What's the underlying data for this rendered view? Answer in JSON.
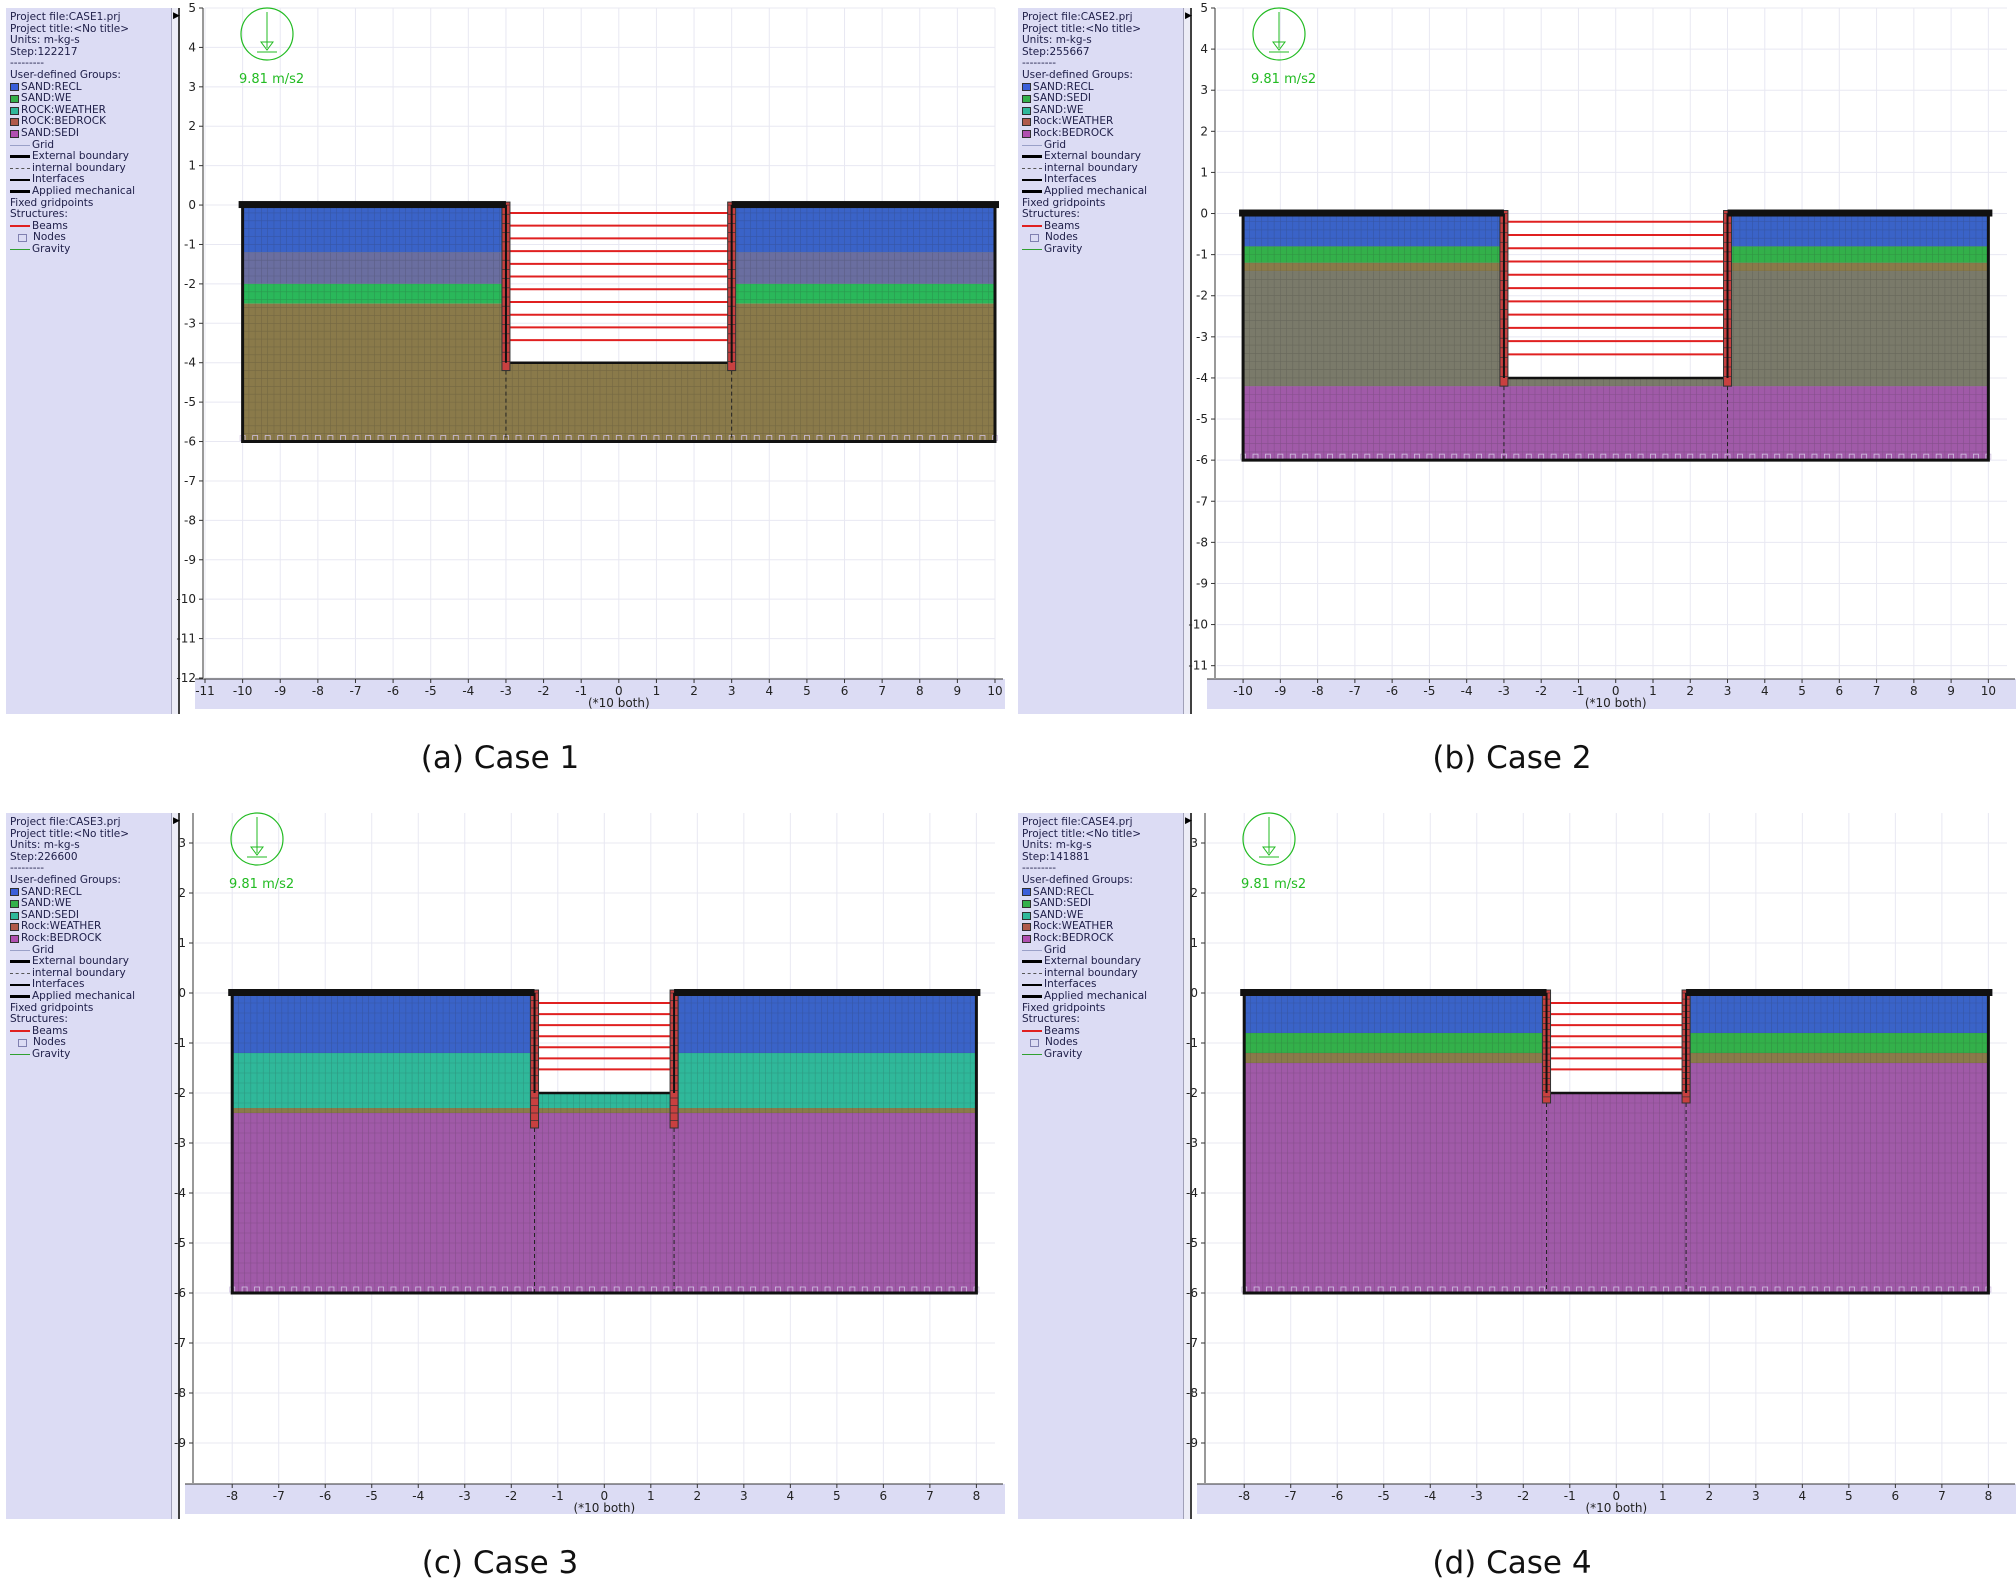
{
  "chart_data": [
    {
      "type": "diagram",
      "project_file": "Project file:CASE1.prj",
      "project_title": "Project title:<No title>",
      "units": "Units: m-kg-s",
      "step": "Step:122217",
      "dashes": "---------",
      "groups_heading": "User-defined Groups:",
      "groups": [
        {
          "name": "SAND:RECL",
          "color": "#3a5fd9"
        },
        {
          "name": "SAND:WE",
          "color": "#33b04a"
        },
        {
          "name": "ROCK:WEATHER",
          "color": "#2fb89a"
        },
        {
          "name": "ROCK:BEDROCK",
          "color": "#b05a4a"
        },
        {
          "name": "SAND:SEDI",
          "color": "#b050b0"
        }
      ],
      "legend_items": [
        "Grid",
        "External boundary",
        "internal boundary",
        "Interfaces",
        "Applied mechanical",
        "Fixed gridpoints",
        "Structures:",
        "Beams",
        "Nodes",
        "Gravity"
      ],
      "gravity_label": "9.81 m/s2",
      "axis_note": "(*10 both)",
      "x_ticks": [
        "-11",
        "-10",
        "-9",
        "-8",
        "-7",
        "-6",
        "-5",
        "-4",
        "-3",
        "-2",
        "-1",
        "0",
        "1",
        "2",
        "3",
        "4",
        "5",
        "6",
        "7",
        "8",
        "9",
        "10"
      ],
      "y_ticks": [
        "5",
        "4",
        "3",
        "2",
        "1",
        "0",
        "-1",
        "-2",
        "-3",
        "-4",
        "-5",
        "-6",
        "-7",
        "-8",
        "-9",
        "-10",
        "-11",
        "-12"
      ],
      "xlim": [
        -11,
        10
      ],
      "ylim": [
        -12,
        5
      ],
      "domain": {
        "x0": -10,
        "x1": 10,
        "y0": -6,
        "y1": 0
      },
      "excavation": {
        "left": -3,
        "right": 3,
        "depth": -4
      },
      "wall_bottom": -4.2,
      "strut_count": 11,
      "layers": [
        {
          "top": 0,
          "bottom": -1.2,
          "color": "#3a63c8"
        },
        {
          "top": -1.2,
          "bottom": -2.0,
          "color": "#6a6ea0"
        },
        {
          "top": -2.0,
          "bottom": -2.5,
          "color": "#2ab85a"
        },
        {
          "top": -2.5,
          "bottom": -6.0,
          "color": "#8a7a4a"
        }
      ],
      "caption": "(a) Case 1"
    },
    {
      "type": "diagram",
      "project_file": "Project file:CASE2.prj",
      "project_title": "Project title:<No title>",
      "units": "Units: m-kg-s",
      "step": "Step:255667",
      "dashes": "---------",
      "groups_heading": "User-defined Groups:",
      "groups": [
        {
          "name": "SAND:RECL",
          "color": "#3a5fd9"
        },
        {
          "name": "SAND:SEDI",
          "color": "#33b04a"
        },
        {
          "name": "SAND:WE",
          "color": "#2fb89a"
        },
        {
          "name": "Rock:WEATHER",
          "color": "#b05a4a"
        },
        {
          "name": "Rock:BEDROCK",
          "color": "#b050b0"
        }
      ],
      "legend_items": [
        "Grid",
        "External boundary",
        "internal boundary",
        "Interfaces",
        "Applied mechanical",
        "Fixed gridpoints",
        "Structures:",
        "Beams",
        "Nodes",
        "Gravity"
      ],
      "gravity_label": "9.81 m/s2",
      "axis_note": "(*10 both)",
      "x_ticks": [
        "-10",
        "-9",
        "-8",
        "-7",
        "-6",
        "-5",
        "-4",
        "-3",
        "-2",
        "-1",
        "0",
        "1",
        "2",
        "3",
        "4",
        "5",
        "6",
        "7",
        "8",
        "9",
        "10"
      ],
      "y_ticks": [
        "5",
        "4",
        "3",
        "2",
        "1",
        "0",
        "-1",
        "-2",
        "-3",
        "-4",
        "-5",
        "-6",
        "-7",
        "-8",
        "-9",
        "-10",
        "-11"
      ],
      "xlim": [
        -10.7,
        10.5
      ],
      "ylim": [
        -11.3,
        5
      ],
      "domain": {
        "x0": -10,
        "x1": 10,
        "y0": -6,
        "y1": 0
      },
      "excavation": {
        "left": -3,
        "right": 3,
        "depth": -4
      },
      "wall_bottom": -4.2,
      "strut_count": 11,
      "layers": [
        {
          "top": 0,
          "bottom": -0.8,
          "color": "#3a63c8"
        },
        {
          "top": -0.8,
          "bottom": -1.2,
          "color": "#33b04a"
        },
        {
          "top": -1.2,
          "bottom": -1.4,
          "color": "#8a7a4a"
        },
        {
          "top": -1.4,
          "bottom": -4.2,
          "color": "#7a7a6a"
        },
        {
          "top": -4.2,
          "bottom": -6.0,
          "color": "#a05aa8"
        }
      ],
      "caption": "(b) Case 2"
    },
    {
      "type": "diagram",
      "project_file": "Project file:CASE3.prj",
      "project_title": "Project title:<No title>",
      "units": "Units: m-kg-s",
      "step": "Step:226600",
      "dashes": "---------",
      "groups_heading": "User-defined Groups:",
      "groups": [
        {
          "name": "SAND:RECL",
          "color": "#3a5fd9"
        },
        {
          "name": "SAND:WE",
          "color": "#33b04a"
        },
        {
          "name": "SAND:SEDI",
          "color": "#2fb89a"
        },
        {
          "name": "Rock:WEATHER",
          "color": "#b05a4a"
        },
        {
          "name": "Rock:BEDROCK",
          "color": "#b050b0"
        }
      ],
      "legend_items": [
        "Grid",
        "External boundary",
        "internal boundary",
        "Interfaces",
        "Applied mechanical",
        "Fixed gridpoints",
        "Structures:",
        "Beams",
        "Nodes",
        "Gravity"
      ],
      "gravity_label": "9.81 m/s2",
      "axis_note": "(*10 both)",
      "x_ticks": [
        "-8",
        "-7",
        "-6",
        "-5",
        "-4",
        "-3",
        "-2",
        "-1",
        "0",
        "1",
        "2",
        "3",
        "4",
        "5",
        "6",
        "7",
        "8"
      ],
      "y_ticks": [
        "3",
        "2",
        "1",
        "0",
        "-1",
        "-2",
        "-3",
        "-4",
        "-5",
        "-6",
        "-7",
        "-8",
        "-9"
      ],
      "xlim": [
        -8.8,
        8.4
      ],
      "ylim": [
        -9.8,
        3.6
      ],
      "domain": {
        "x0": -8,
        "x1": 8,
        "y0": -6,
        "y1": 0
      },
      "excavation": {
        "left": -1.5,
        "right": 1.5,
        "depth": -2
      },
      "wall_bottom": -2.7,
      "strut_count": 7,
      "layers": [
        {
          "top": 0,
          "bottom": -1.2,
          "color": "#3a63c8"
        },
        {
          "top": -1.2,
          "bottom": -2.3,
          "color": "#2fb89a"
        },
        {
          "top": -2.3,
          "bottom": -2.4,
          "color": "#8a7a4a"
        },
        {
          "top": -2.4,
          "bottom": -6.0,
          "color": "#a05aa8"
        }
      ],
      "caption": "(c) Case 3"
    },
    {
      "type": "diagram",
      "project_file": "Project file:CASE4.prj",
      "project_title": "Project title:<No title>",
      "units": "Units: m-kg-s",
      "step": "Step:141881",
      "dashes": "---------",
      "groups_heading": "User-defined Groups:",
      "groups": [
        {
          "name": "SAND:RECL",
          "color": "#3a5fd9"
        },
        {
          "name": "SAND:SEDI",
          "color": "#33b04a"
        },
        {
          "name": "SAND:WE",
          "color": "#2fb89a"
        },
        {
          "name": "Rock:WEATHER",
          "color": "#b05a4a"
        },
        {
          "name": "Rock:BEDROCK",
          "color": "#b050b0"
        }
      ],
      "legend_items": [
        "Grid",
        "External boundary",
        "internal boundary",
        "Interfaces",
        "Applied mechanical",
        "Fixed gridpoints",
        "Structures:",
        "Beams",
        "Nodes",
        "Gravity"
      ],
      "gravity_label": "9.81 m/s2",
      "axis_note": "(*10 both)",
      "x_ticks": [
        "-8",
        "-7",
        "-6",
        "-5",
        "-4",
        "-3",
        "-2",
        "-1",
        "0",
        "1",
        "2",
        "3",
        "4",
        "5",
        "6",
        "7",
        "8"
      ],
      "y_ticks": [
        "3",
        "2",
        "1",
        "0",
        "-1",
        "-2",
        "-3",
        "-4",
        "-5",
        "-6",
        "-7",
        "-8",
        "-9"
      ],
      "xlim": [
        -8.8,
        8.4
      ],
      "ylim": [
        -9.8,
        3.6
      ],
      "domain": {
        "x0": -8,
        "x1": 8,
        "y0": -6,
        "y1": 0
      },
      "excavation": {
        "left": -1.5,
        "right": 1.5,
        "depth": -2
      },
      "wall_bottom": -2.2,
      "strut_count": 7,
      "layers": [
        {
          "top": 0,
          "bottom": -0.8,
          "color": "#3a63c8"
        },
        {
          "top": -0.8,
          "bottom": -1.2,
          "color": "#33b04a"
        },
        {
          "top": -1.2,
          "bottom": -1.4,
          "color": "#8a7a4a"
        },
        {
          "top": -1.4,
          "bottom": -6.0,
          "color": "#a05aa8"
        }
      ],
      "caption": "(d) Case 4"
    }
  ]
}
